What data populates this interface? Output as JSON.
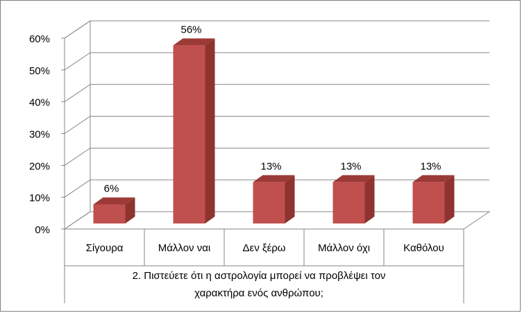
{
  "chart_data": {
    "type": "bar",
    "categories": [
      "Σίγουρα",
      "Μάλλον ναι",
      "Δεν ξέρω",
      "Μάλλον όχι",
      "Καθόλου"
    ],
    "values": [
      6,
      56,
      13,
      13,
      13
    ],
    "data_labels": [
      "6%",
      "56%",
      "13%",
      "13%",
      "13%"
    ],
    "y_ticks": [
      "0%",
      "10%",
      "20%",
      "30%",
      "40%",
      "50%",
      "60%"
    ],
    "ylim": [
      0,
      60
    ],
    "grid": true,
    "style": "3d-column",
    "x_title_lines": [
      "2. Πιστεύετε ότι η αστρολογία μπορεί να προβλέψει τον",
      "χαρακτήρα ενός ανθρώπου;"
    ],
    "colors": {
      "bar_front": "#c0504d",
      "bar_side": "#8e3330",
      "bar_top": "#9c3a37",
      "grid": "#868686",
      "axis": "#868686"
    }
  }
}
